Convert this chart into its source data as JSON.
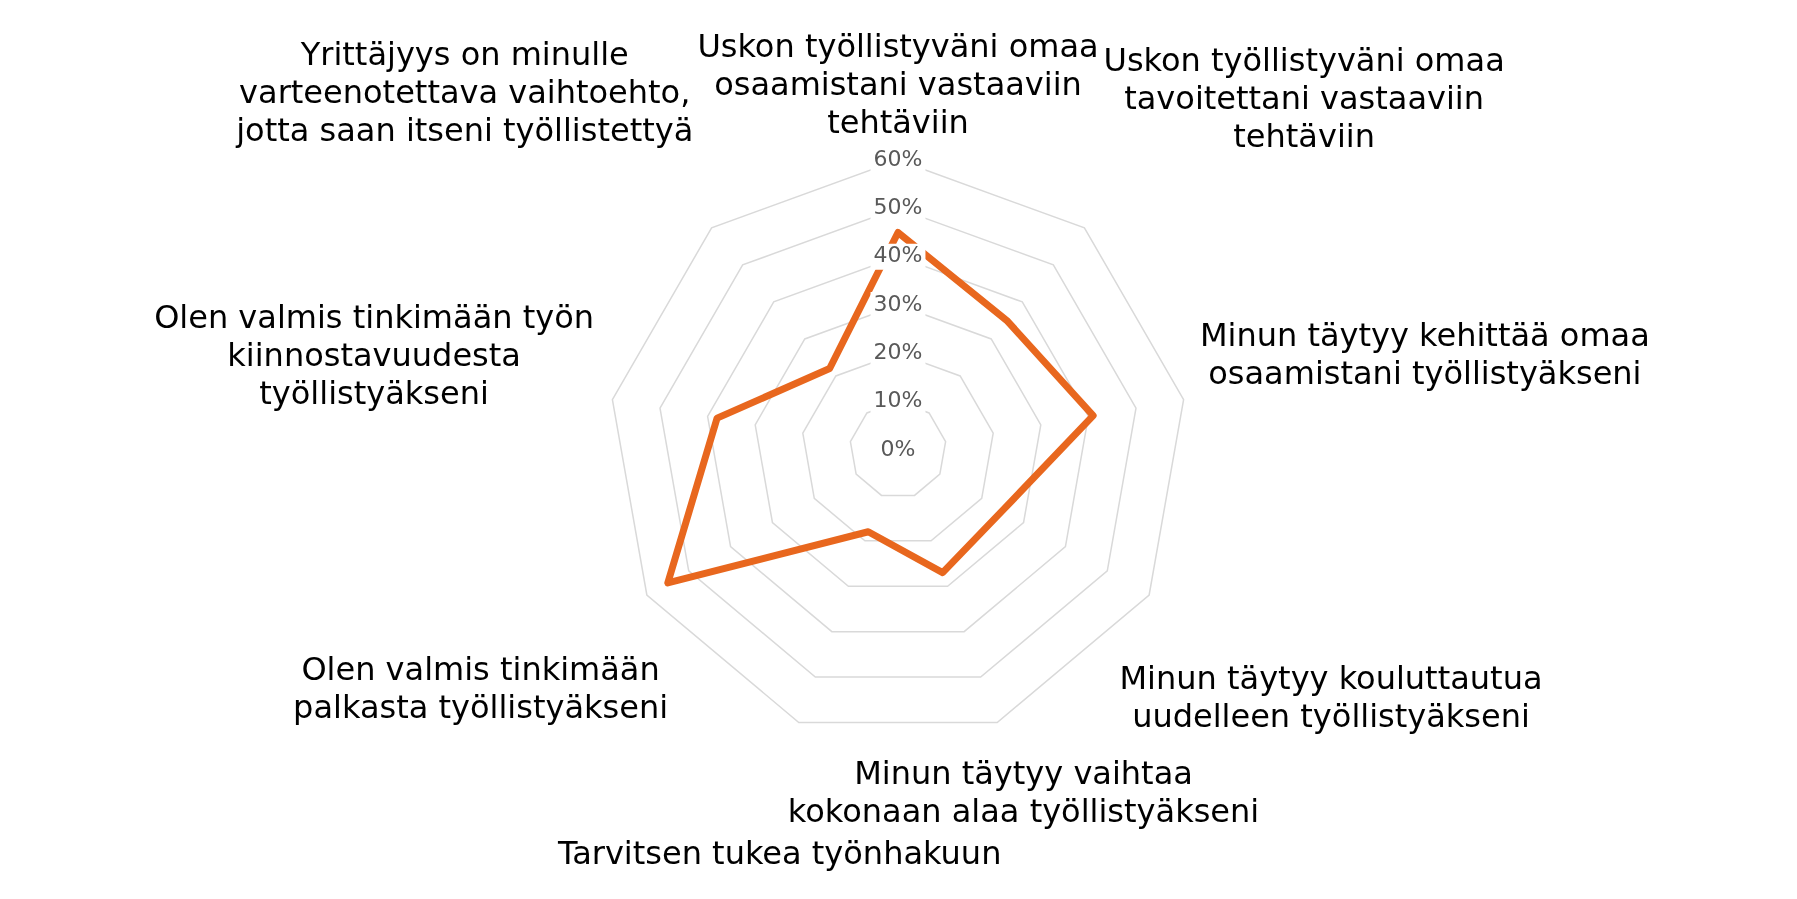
{
  "chart_data": {
    "type": "radar",
    "categories": [
      "Uskon työllistyväni omaa\nosaamistani vastaaviin\ntehtäviin",
      "Uskon työllistyväni omaa\ntavoitettani vastaaviin\ntehtäviin",
      "Minun täytyy kehittää omaa\nosaamistani työllistyäkseni",
      "Minun täytyy kouluttautua\nuudelleen työllistyäkseni",
      "Minun täytyy vaihtaa\nkokonaan alaa työllistyäkseni",
      "Tarvitsen tukea työnhakuun",
      "Olen valmis tinkimään\npalkasta työllistyäkseni",
      "Olen valmis tinkimään työn\nkiinnostavuudesta\ntyöllistyäkseni",
      "Yrittäjyys on minulle\nvarteenotettava vaihtoehto,\njotta saan itseni työllistettyä"
    ],
    "series": [
      {
        "color": "#e8671e",
        "values": [
          45,
          35,
          41,
          25,
          27,
          18,
          55,
          38,
          22
        ]
      }
    ],
    "ylim": [
      0,
      60
    ],
    "yticks": [
      {
        "value": 0,
        "label": "0%"
      },
      {
        "value": 10,
        "label": "10%"
      },
      {
        "value": 20,
        "label": "20%"
      },
      {
        "value": 30,
        "label": "30%"
      },
      {
        "value": 40,
        "label": "40%"
      },
      {
        "value": 50,
        "label": "50%"
      },
      {
        "value": 60,
        "label": "60%"
      }
    ],
    "grid": true,
    "legend": false,
    "marker": "none",
    "line_style": "solid"
  }
}
